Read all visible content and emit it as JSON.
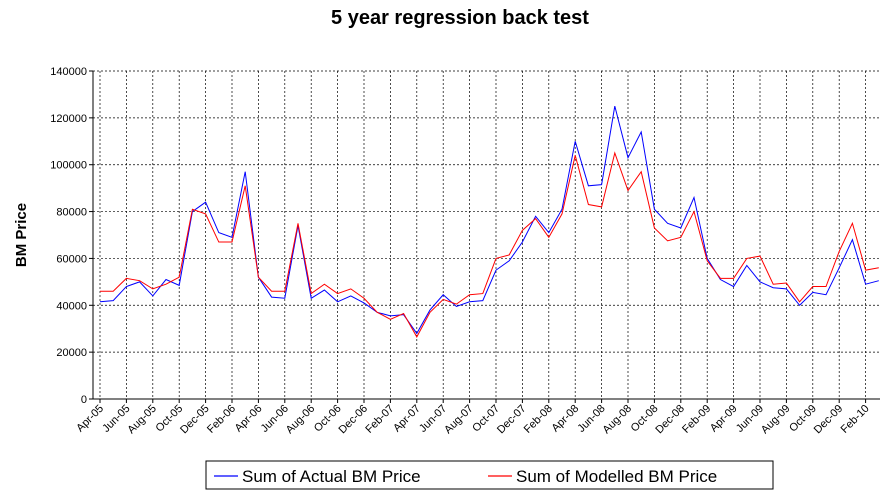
{
  "chart_data": {
    "type": "line",
    "title": "5 year regression back test",
    "y_label": "BM Price",
    "categories": [
      "Apr-05",
      null,
      "Jun-05",
      null,
      "Aug-05",
      null,
      "Oct-05",
      null,
      "Dec-05",
      null,
      "Feb-06",
      null,
      "Apr-06",
      null,
      "Jun-06",
      null,
      "Aug-06",
      null,
      "Oct-06",
      null,
      "Dec-06",
      null,
      "Feb-07",
      null,
      "Apr-07",
      null,
      "Jun-07",
      null,
      "Aug-07",
      null,
      "Oct-07",
      null,
      "Dec-07",
      null,
      "Feb-08",
      null,
      "Apr-08",
      null,
      "Jun-08",
      null,
      "Aug-08",
      null,
      "Oct-08",
      null,
      "Dec-08",
      null,
      "Feb-09",
      null,
      "Apr-09",
      null,
      "Jun-09",
      null,
      "Aug-09",
      null,
      "Oct-09",
      null,
      "Dec-09",
      null,
      "Feb-10",
      null
    ],
    "series": [
      {
        "name": "Sum of Actual BM Price",
        "color": "#0000ff",
        "values": [
          41500,
          42000,
          48000,
          50000,
          44000,
          51000,
          48500,
          80000,
          84000,
          71000,
          69000,
          97000,
          52000,
          43500,
          43000,
          74000,
          43000,
          46500,
          41500,
          44000,
          41000,
          37000,
          35500,
          36000,
          28000,
          38000,
          44500,
          39500,
          41500,
          42000,
          55000,
          59000,
          67000,
          78000,
          71000,
          81000,
          110000,
          91000,
          91500,
          125000,
          103000,
          114000,
          81000,
          75000,
          73000,
          86000,
          60000,
          51000,
          48000,
          57000,
          50000,
          47500,
          47000,
          40000,
          45500,
          44500,
          56000,
          68000,
          49000,
          50500
        ]
      },
      {
        "name": "Sum of Modelled BM Price",
        "color": "#ff0000",
        "values": [
          46000,
          46000,
          51500,
          50500,
          47000,
          49000,
          52000,
          81000,
          79000,
          67000,
          67000,
          91000,
          52000,
          46000,
          46000,
          75000,
          45000,
          49000,
          45000,
          47000,
          43000,
          37000,
          34000,
          36500,
          26500,
          37000,
          42500,
          40500,
          44500,
          45000,
          60000,
          61500,
          72000,
          77000,
          69000,
          79000,
          104000,
          83000,
          82000,
          105000,
          89000,
          97000,
          73000,
          67500,
          69000,
          80000,
          59000,
          51500,
          51500,
          60000,
          61000,
          49000,
          49500,
          41500,
          48000,
          48000,
          63000,
          75000,
          55000,
          56000
        ]
      }
    ],
    "ylim": [
      0,
      140000
    ],
    "yticks": [
      0,
      20000,
      40000,
      60000,
      80000,
      100000,
      120000,
      140000
    ],
    "grid": true
  }
}
